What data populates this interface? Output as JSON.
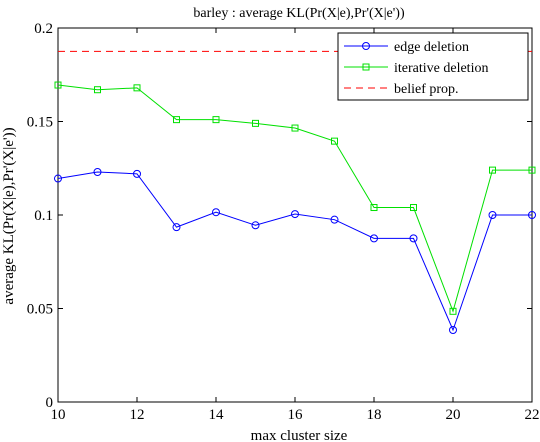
{
  "chart_data": {
    "type": "line",
    "title": "barley : average KL(Pr(X|e),Pr'(X|e'))",
    "xlabel": "max cluster size",
    "ylabel": "average KL(Pr(X|e),Pr'(X|e'))",
    "xlim": [
      10,
      22
    ],
    "ylim": [
      0,
      0.2
    ],
    "xticks": [
      "10",
      "12",
      "14",
      "16",
      "18",
      "20",
      "22"
    ],
    "yticks": [
      "0",
      "0.05",
      "0.1",
      "0.15",
      "0.2"
    ],
    "x": [
      10,
      11,
      12,
      13,
      14,
      15,
      16,
      17,
      18,
      19,
      20,
      21,
      22
    ],
    "series": [
      {
        "name": "edge deletion",
        "color": "#0000ff",
        "marker": "circle",
        "values": [
          0.1195,
          0.123,
          0.122,
          0.0935,
          0.1015,
          0.0945,
          0.1005,
          0.0975,
          0.0875,
          0.0875,
          0.0385,
          0.1,
          0.1
        ]
      },
      {
        "name": "iterative deletion",
        "color": "#00e000",
        "marker": "square",
        "values": [
          0.1695,
          0.167,
          0.168,
          0.151,
          0.151,
          0.149,
          0.1465,
          0.1395,
          0.104,
          0.104,
          0.0485,
          0.124,
          0.124
        ]
      },
      {
        "name": "belief prop.",
        "color": "#ff0000",
        "style": "dashed",
        "constant": 0.1875
      }
    ],
    "legend": "top-right",
    "grid": false
  }
}
